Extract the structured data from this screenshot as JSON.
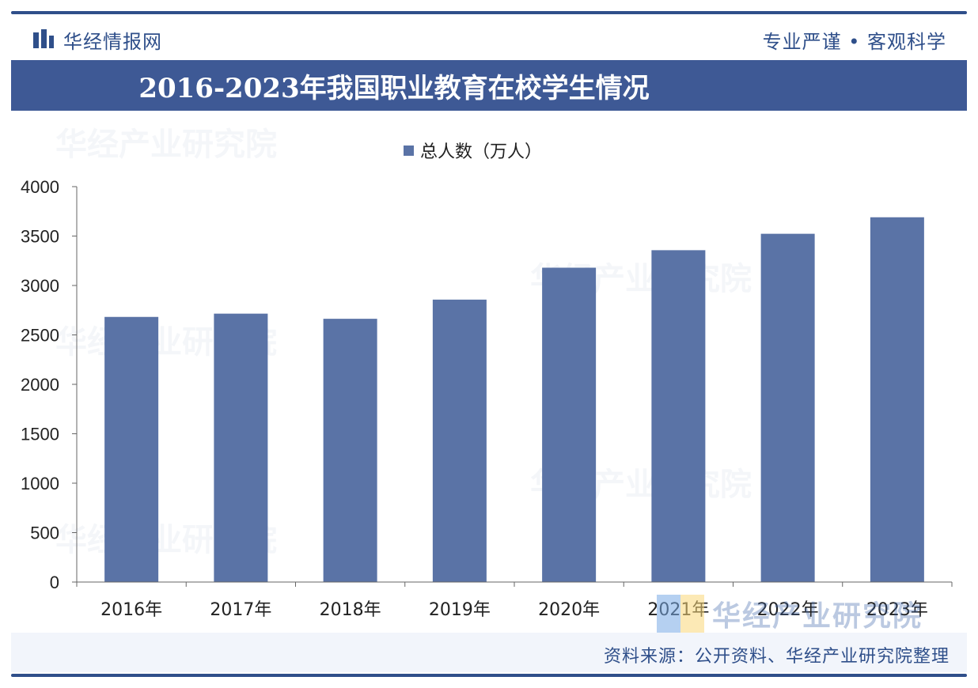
{
  "header": {
    "brand": "华经情报网",
    "slogan": "专业严谨 • 客观科学",
    "logo_icon": "bar-logo-icon"
  },
  "title": "2016-2023年我国职业教育在校学生情况",
  "legend": {
    "label": "总人数（万人）",
    "color": "#5a73a6"
  },
  "chart_data": {
    "type": "bar",
    "categories": [
      "2016年",
      "2017年",
      "2018年",
      "2019年",
      "2020年",
      "2021年",
      "2022年",
      "2023年"
    ],
    "series": [
      {
        "name": "总人数（万人）",
        "values": [
          2682,
          2715,
          2663,
          2857,
          3180,
          3357,
          3523,
          3690
        ]
      }
    ],
    "ylim": [
      0,
      4000
    ],
    "yticks": [
      0,
      500,
      1000,
      1500,
      2000,
      2500,
      3000,
      3500,
      4000
    ],
    "xlabel": "",
    "ylabel": "",
    "grid": false,
    "legend_position": "top-center",
    "bar_color": "#5a73a6"
  },
  "watermarks": [
    "华经产业研究院"
  ],
  "footer": {
    "brand": "华经产业研究院",
    "source": "资料来源：公开资料、华经产业研究院整理"
  },
  "colors": {
    "accent": "#2f4f8a",
    "title_bar": "#3e5995",
    "bar": "#5a73a6"
  }
}
